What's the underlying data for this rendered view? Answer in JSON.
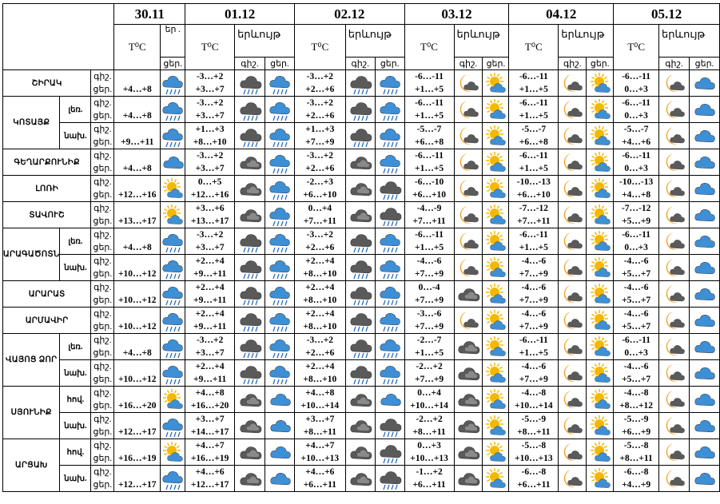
{
  "header": {
    "dates": [
      "30.11",
      "01.12",
      "02.12",
      "03.12",
      "04.12",
      "05.12"
    ],
    "temp_label": "T⁰C",
    "weather_label": "երևույթ",
    "weather_label_narrow": "երևույթ",
    "first_col_weather": "եր .",
    "day_label": "ցեր.",
    "night_label": "գիշ."
  },
  "dn_labels": {
    "night": "գիշ.",
    "day": "ցեր."
  },
  "icon_colors": {
    "sun": "#f5b800",
    "moon": "#f0a020",
    "cloud_dark": "#5a5a5a",
    "cloud_blue": "#3d8fd6",
    "rain": "#2a6fbf"
  },
  "rows": [
    {
      "region": "ՇԻՐԱԿ",
      "sub": "",
      "d0": {
        "t": "+4…+8",
        "i": "cloud-rain"
      },
      "days": [
        {
          "n": "-3…+2",
          "d": "+3…+7",
          "ni": "dark-rain",
          "di": "cloud-rain"
        },
        {
          "n": "-3…+2",
          "d": "+2…+6",
          "ni": "dark-rain",
          "di": "cloud-rain"
        },
        {
          "n": "-6…-11",
          "d": "+1…+5",
          "ni": "moon-cloud",
          "di": "sun-cloud"
        },
        {
          "n": "-6…-11",
          "d": "+1…+5",
          "ni": "moon-cloud",
          "di": "sun-cloud"
        },
        {
          "n": "-6…-11",
          "d": "0…+3",
          "ni": "moon-cloud",
          "di": "cloud-blue"
        }
      ]
    },
    {
      "region": "ԿՈՏԱՅՔ",
      "sub": "լեռ.",
      "d0": {
        "t": "+4…+8",
        "i": "cloud-rain"
      },
      "days": [
        {
          "n": "-3…+2",
          "d": "+3…+7",
          "ni": "dark-rain",
          "di": "cloud-rain"
        },
        {
          "n": "-3…+2",
          "d": "+2…+6",
          "ni": "dark-rain",
          "di": "cloud-rain"
        },
        {
          "n": "-6…-11",
          "d": "+1…+5",
          "ni": "moon-cloud",
          "di": "sun-cloud"
        },
        {
          "n": "-6…-11",
          "d": "+1…+5",
          "ni": "moon-cloud",
          "di": "sun-cloud"
        },
        {
          "n": "-6…-11",
          "d": "0…+3",
          "ni": "moon-cloud",
          "di": "cloud-blue"
        }
      ]
    },
    {
      "region": "",
      "sub": "նախ.",
      "d0": {
        "t": "+9…+11",
        "i": "cloud-rain"
      },
      "days": [
        {
          "n": "+1…+3",
          "d": "+8…+10",
          "ni": "dark-rain",
          "di": "cloud-rain"
        },
        {
          "n": "+1…+3",
          "d": "+7…+9",
          "ni": "dark-rain",
          "di": "cloud-rain"
        },
        {
          "n": "-5…-7",
          "d": "+6…+8",
          "ni": "moon-cloud",
          "di": "sun-cloud"
        },
        {
          "n": "-5…-7",
          "d": "+6…+8",
          "ni": "moon-cloud",
          "di": "sun-cloud"
        },
        {
          "n": "-5…-7",
          "d": "+4…+6",
          "ni": "moon-cloud",
          "di": "cloud-blue"
        }
      ]
    },
    {
      "region": "ԳԵՂԱՐՔՈՒՆԻՔ",
      "sub": "",
      "d0": {
        "t": "+4…+8",
        "i": "cloud-blue"
      },
      "days": [
        {
          "n": "-3…+2",
          "d": "+3…+7",
          "ni": "dark",
          "di": "cloud-rain"
        },
        {
          "n": "-3…+2",
          "d": "+2…+6",
          "ni": "dark",
          "di": "cloud-rain"
        },
        {
          "n": "-6…-11",
          "d": "+1…+5",
          "ni": "moon-cloud",
          "di": "sun-cloud"
        },
        {
          "n": "-6…-11",
          "d": "+1…+5",
          "ni": "moon-cloud",
          "di": "sun-cloud"
        },
        {
          "n": "-6…-11",
          "d": "0…+3",
          "ni": "moon-cloud",
          "di": "cloud-blue"
        }
      ]
    },
    {
      "region": "ԼՈՌԻ",
      "sub": "",
      "d0": {
        "t": "+12…+16",
        "i": "sun-cloud"
      },
      "days": [
        {
          "n": "0…+5",
          "d": "+12…+16",
          "ni": "dark",
          "di": "cloud-rain"
        },
        {
          "n": "-2…+3",
          "d": "+6…+10",
          "ni": "dark",
          "di": "dark-rain"
        },
        {
          "n": "-6…-10",
          "d": "+6…+10",
          "ni": "moon-cloud",
          "di": "sun-cloud"
        },
        {
          "n": "-10…-13",
          "d": "+6…+10",
          "ni": "moon-cloud",
          "di": "sun-cloud"
        },
        {
          "n": "-10…-13",
          "d": "+4…+8",
          "ni": "moon-cloud",
          "di": "cloud-blue"
        }
      ]
    },
    {
      "region": "ՏԱՎՈՒՇ",
      "sub": "",
      "d0": {
        "t": "+13…+17",
        "i": "sun-cloud"
      },
      "days": [
        {
          "n": "+3…+6",
          "d": "+13…+17",
          "ni": "dark",
          "di": "cloud-rain"
        },
        {
          "n": "0…+4",
          "d": "+7…+11",
          "ni": "dark",
          "di": "dark-rain"
        },
        {
          "n": "-4…-9",
          "d": "+7…+11",
          "ni": "moon-cloud",
          "di": "sun-cloud"
        },
        {
          "n": "-7…-12",
          "d": "+7…+11",
          "ni": "moon-cloud",
          "di": "sun-cloud"
        },
        {
          "n": "-7…-12",
          "d": "+5…+9",
          "ni": "moon-cloud",
          "di": "cloud-blue"
        }
      ]
    },
    {
      "region": "ԱՐԱԳԱԾՈՏՆ",
      "sub": "լեռ.",
      "d0": {
        "t": "+4…+8",
        "i": "cloud-rain"
      },
      "days": [
        {
          "n": "-3…+2",
          "d": "+3…+7",
          "ni": "dark-rain",
          "di": "cloud-rain"
        },
        {
          "n": "-3…+2",
          "d": "+2…+6",
          "ni": "dark-rain",
          "di": "cloud-rain"
        },
        {
          "n": "-6…-11",
          "d": "+1…+5",
          "ni": "moon-cloud",
          "di": "sun-cloud"
        },
        {
          "n": "-6…-11",
          "d": "+1…+5",
          "ni": "moon-cloud",
          "di": "sun-cloud"
        },
        {
          "n": "-6…-11",
          "d": "0…+3",
          "ni": "moon-cloud",
          "di": "cloud-blue"
        }
      ]
    },
    {
      "region": "",
      "sub": "նախ.",
      "d0": {
        "t": "+10…+12",
        "i": "cloud-rain"
      },
      "days": [
        {
          "n": "+2…+4",
          "d": "+9…+11",
          "ni": "dark-rain",
          "di": "cloud-rain"
        },
        {
          "n": "+2…+4",
          "d": "+8…+10",
          "ni": "dark-rain",
          "di": "cloud-rain"
        },
        {
          "n": "-4…-6",
          "d": "+7…+9",
          "ni": "moon-cloud",
          "di": "sun-cloud"
        },
        {
          "n": "-4…-6",
          "d": "+7…+9",
          "ni": "moon-cloud",
          "di": "sun-cloud"
        },
        {
          "n": "-4…-6",
          "d": "+5…+7",
          "ni": "moon-cloud",
          "di": "cloud-blue"
        }
      ]
    },
    {
      "region": "ԱՐԱՐԱՏ",
      "sub": "",
      "d0": {
        "t": "+10…+12",
        "i": "cloud-rain"
      },
      "days": [
        {
          "n": "+2…+4",
          "d": "+9…+11",
          "ni": "dark-rain",
          "di": "cloud-rain"
        },
        {
          "n": "+2…+4",
          "d": "+8…+10",
          "ni": "dark-rain",
          "di": "cloud-rain"
        },
        {
          "n": "0…-4",
          "d": "+7…+9",
          "ni": "dark",
          "di": "sun-cloud"
        },
        {
          "n": "-4…-6",
          "d": "+7…+9",
          "ni": "moon-cloud",
          "di": "sun-cloud"
        },
        {
          "n": "-4…-6",
          "d": "+5…+7",
          "ni": "moon-cloud",
          "di": "cloud-blue"
        }
      ]
    },
    {
      "region": "ԱՐՄԱՎԻՐ",
      "sub": "",
      "d0": {
        "t": "+10…+12",
        "i": "cloud-rain"
      },
      "days": [
        {
          "n": "+2…+4",
          "d": "+9…+11",
          "ni": "dark-rain",
          "di": "cloud-rain"
        },
        {
          "n": "+2…+4",
          "d": "+8…+10",
          "ni": "dark-rain",
          "di": "cloud-rain"
        },
        {
          "n": "-3…-6",
          "d": "+7…+9",
          "ni": "moon-cloud",
          "di": "sun-cloud"
        },
        {
          "n": "-4…-6",
          "d": "+7…+9",
          "ni": "moon-cloud",
          "di": "sun-cloud"
        },
        {
          "n": "-4…-6",
          "d": "+5…+7",
          "ni": "moon-cloud",
          "di": "cloud-blue"
        }
      ]
    },
    {
      "region": "ՎԱՅՈՑ ՁՈՐ",
      "sub": "լեռ.",
      "d0": {
        "t": "+4…+8",
        "i": "cloud-rain"
      },
      "days": [
        {
          "n": "-3…+2",
          "d": "+3…+7",
          "ni": "dark-rain",
          "di": "cloud-rain"
        },
        {
          "n": "-3…+2",
          "d": "+2…+6",
          "ni": "dark-rain",
          "di": "cloud-rain"
        },
        {
          "n": "-2…-7",
          "d": "+1…+5",
          "ni": "dark",
          "di": "sun-cloud"
        },
        {
          "n": "-6…-11",
          "d": "+1…+5",
          "ni": "moon-cloud",
          "di": "sun-cloud"
        },
        {
          "n": "-6…-11",
          "d": "0…+3",
          "ni": "moon-cloud",
          "di": "cloud-blue"
        }
      ]
    },
    {
      "region": "",
      "sub": "նախ.",
      "d0": {
        "t": "+10…+12",
        "i": "cloud-rain"
      },
      "days": [
        {
          "n": "+2…+4",
          "d": "+9…+11",
          "ni": "dark-rain",
          "di": "cloud-rain"
        },
        {
          "n": "+2…+4",
          "d": "+8…+10",
          "ni": "dark-rain",
          "di": "cloud-rain"
        },
        {
          "n": "-2…+2",
          "d": "+7…+9",
          "ni": "dark",
          "di": "sun-cloud"
        },
        {
          "n": "-4…-6",
          "d": "+7…+9",
          "ni": "moon-cloud",
          "di": "sun-cloud"
        },
        {
          "n": "-4…-6",
          "d": "+5…+7",
          "ni": "moon-cloud",
          "di": "cloud-blue"
        }
      ]
    },
    {
      "region": "ՍՅՈՒՆԻՔ",
      "sub": "հով.",
      "d0": {
        "t": "+16…+20",
        "i": "sun-cloud"
      },
      "days": [
        {
          "n": "+4…+8",
          "d": "+16…+20",
          "ni": "dark",
          "di": "cloud-blue"
        },
        {
          "n": "+4…+8",
          "d": "+10…+14",
          "ni": "dark",
          "di": "cloud-blue"
        },
        {
          "n": "0…+4",
          "d": "+10…+14",
          "ni": "dark",
          "di": "sun-cloud"
        },
        {
          "n": "-4…-8",
          "d": "+10…+14",
          "ni": "moon-cloud",
          "di": "sun-cloud"
        },
        {
          "n": "-4…-8",
          "d": "+8…+12",
          "ni": "moon-cloud",
          "di": "cloud-blue"
        }
      ]
    },
    {
      "region": "",
      "sub": "նախ.",
      "d0": {
        "t": "+12…+17",
        "i": "cloud-rain"
      },
      "days": [
        {
          "n": "+3…+7",
          "d": "+14…+17",
          "ni": "dark",
          "di": "cloud-blue"
        },
        {
          "n": "+3…+7",
          "d": "+8…+11",
          "ni": "dark",
          "di": "dark-rain"
        },
        {
          "n": "-2…+2",
          "d": "+8…+11",
          "ni": "dark",
          "di": "sun-cloud"
        },
        {
          "n": "-5…-9",
          "d": "+8…+11",
          "ni": "moon-cloud",
          "di": "sun-cloud"
        },
        {
          "n": "-5…-9",
          "d": "+6…+9",
          "ni": "moon-cloud",
          "di": "cloud-blue"
        }
      ]
    },
    {
      "region": "ԱՐՑԱԽ",
      "sub": "հով.",
      "d0": {
        "t": "+16…+19",
        "i": "sun-cloud"
      },
      "days": [
        {
          "n": "+4…+7",
          "d": "+16…+19",
          "ni": "dark",
          "di": "cloud-blue"
        },
        {
          "n": "+4…+7",
          "d": "+10…+13",
          "ni": "dark",
          "di": "dark-rain"
        },
        {
          "n": "0…+3",
          "d": "+10…+13",
          "ni": "dark",
          "di": "sun-cloud"
        },
        {
          "n": "-5…-8",
          "d": "+10…+13",
          "ni": "moon-cloud",
          "di": "sun-cloud"
        },
        {
          "n": "-5…-8",
          "d": "+8…+11",
          "ni": "moon-cloud",
          "di": "cloud-blue"
        }
      ]
    },
    {
      "region": "",
      "sub": "նախ.",
      "d0": {
        "t": "+12…+17",
        "i": "cloud-rain"
      },
      "days": [
        {
          "n": "+4…+6",
          "d": "+12…+17",
          "ni": "dark",
          "di": "cloud-blue"
        },
        {
          "n": "+4…+6",
          "d": "+6…+11",
          "ni": "dark",
          "di": "dark-rain"
        },
        {
          "n": "-1…+2",
          "d": "+6…+11",
          "ni": "dark",
          "di": "sun-cloud"
        },
        {
          "n": "-6…-8",
          "d": "+6…+11",
          "ni": "moon-cloud",
          "di": "sun-cloud"
        },
        {
          "n": "-6…-8",
          "d": "+4…+9",
          "ni": "moon-cloud",
          "di": "cloud-blue"
        }
      ]
    }
  ]
}
